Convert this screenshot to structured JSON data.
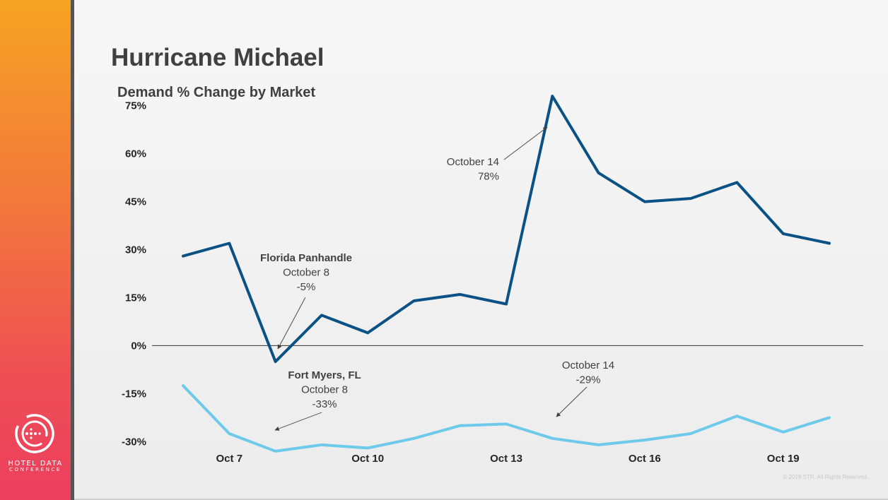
{
  "slide": {
    "title": "Hurricane Michael",
    "subtitle": "Demand % Change by Market",
    "footer": "© 2019 STR. All Rights Reserved.",
    "logo": {
      "line1": "HOTEL DATA",
      "line2": "CONFERENCE",
      "icon": "conference-logo-icon"
    }
  },
  "colors": {
    "florida_panhandle": "#0a5286",
    "fort_myers": "#6dcaea",
    "sidebar_top": "#f6a423",
    "sidebar_bottom": "#ec3f5f"
  },
  "chart_data": {
    "type": "line",
    "title": "Demand % Change by Market",
    "x": [
      "Oct 6",
      "Oct 7",
      "Oct 8",
      "Oct 9",
      "Oct 10",
      "Oct 11",
      "Oct 12",
      "Oct 13",
      "Oct 14",
      "Oct 15",
      "Oct 16",
      "Oct 17",
      "Oct 18",
      "Oct 19",
      "Oct 20"
    ],
    "x_tick_labels": [
      "Oct 7",
      "Oct 10",
      "Oct 13",
      "Oct 16",
      "Oct 19"
    ],
    "ylim": [
      -35,
      80
    ],
    "y_ticks": [
      75,
      60,
      45,
      30,
      15,
      0,
      -15,
      -30
    ],
    "y_tick_labels": [
      "75%",
      "60%",
      "45%",
      "30%",
      "15%",
      "0%",
      "-15%",
      "-30%"
    ],
    "grid": false,
    "legend": "none",
    "series": [
      {
        "key": "florida_panhandle",
        "values": [
          28,
          32,
          -5,
          9.5,
          4,
          14,
          16,
          13,
          78,
          54,
          45,
          46,
          51,
          35,
          32
        ]
      },
      {
        "key": "fort_myers",
        "values": [
          -12.5,
          -27.5,
          -33,
          -31,
          -32,
          -29,
          -25,
          -24.5,
          -29,
          -31,
          -29.5,
          -27.5,
          -22,
          -27,
          -22.5
        ]
      }
    ],
    "annotations": [
      {
        "series": "florida_panhandle",
        "target_x": "Oct 8",
        "lines": [
          "Florida Panhandle",
          "October 8",
          "-5%"
        ]
      },
      {
        "series": "florida_panhandle",
        "target_x": "Oct 14",
        "lines": [
          "October 14",
          "78%"
        ]
      },
      {
        "series": "fort_myers",
        "target_x": "Oct 8",
        "lines": [
          "Fort Myers, FL",
          "October 8",
          "-33%"
        ]
      },
      {
        "series": "fort_myers",
        "target_x": "Oct 14",
        "lines": [
          "October 14",
          "-29%"
        ]
      }
    ]
  }
}
